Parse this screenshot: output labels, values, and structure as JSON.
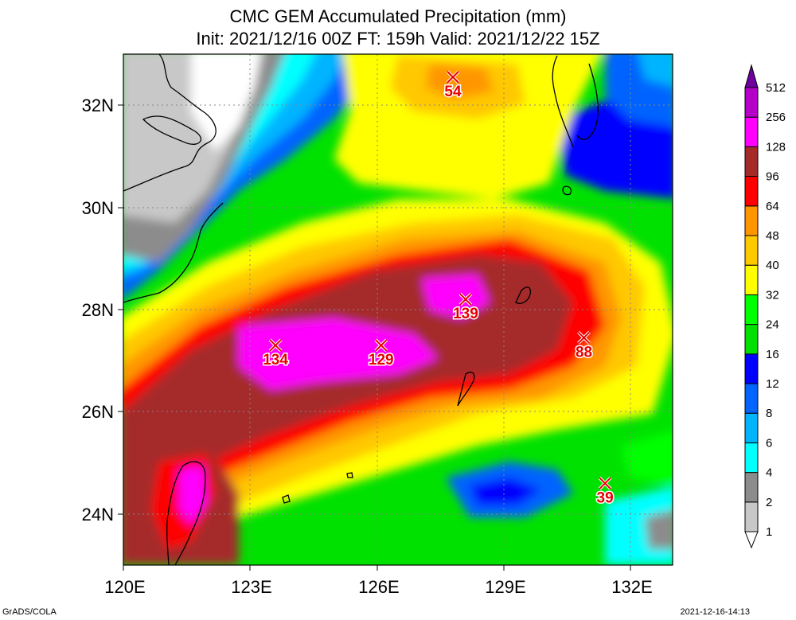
{
  "header": {
    "title": "CMC GEM Accumulated Precipitation (mm)",
    "subtitle": "Init: 2021/12/16 00Z  FT: 159h  Valid: 2021/12/22 15Z"
  },
  "map": {
    "lon_range": [
      120,
      133
    ],
    "lat_range": [
      23,
      33
    ],
    "lat_labels": [
      "32N",
      "30N",
      "28N",
      "26N",
      "24N"
    ],
    "lat_values": [
      32,
      30,
      28,
      26,
      24
    ],
    "lon_labels": [
      "120E",
      "123E",
      "126E",
      "129E",
      "132E"
    ],
    "lon_values": [
      120,
      123,
      126,
      129,
      132
    ],
    "maxima": [
      {
        "label": "54",
        "lon": 127.8,
        "lat": 32.55
      },
      {
        "label": "134",
        "lon": 123.6,
        "lat": 27.3
      },
      {
        "label": "129",
        "lon": 126.1,
        "lat": 27.3
      },
      {
        "label": "139",
        "lon": 128.1,
        "lat": 28.2
      },
      {
        "label": "88",
        "lon": 130.9,
        "lat": 27.45
      },
      {
        "label": "39",
        "lon": 131.4,
        "lat": 24.6
      }
    ]
  },
  "legend": {
    "levels": [
      "1",
      "2",
      "4",
      "6",
      "8",
      "12",
      "16",
      "24",
      "32",
      "40",
      "48",
      "64",
      "96",
      "128",
      "256",
      "512"
    ],
    "colors": [
      "#ffffff",
      "#c8c8c8",
      "#8c8c8c",
      "#00ffff",
      "#00b4ff",
      "#0064ff",
      "#0000ff",
      "#00e100",
      "#00ff00",
      "#ffff00",
      "#ffc800",
      "#ff9600",
      "#ff0000",
      "#a52a2a",
      "#ff00ff",
      "#b400c8",
      "#6e00a0"
    ]
  },
  "footer": {
    "credit": "GrADS/COLA",
    "timestamp": "2021-12-16-14:13"
  }
}
